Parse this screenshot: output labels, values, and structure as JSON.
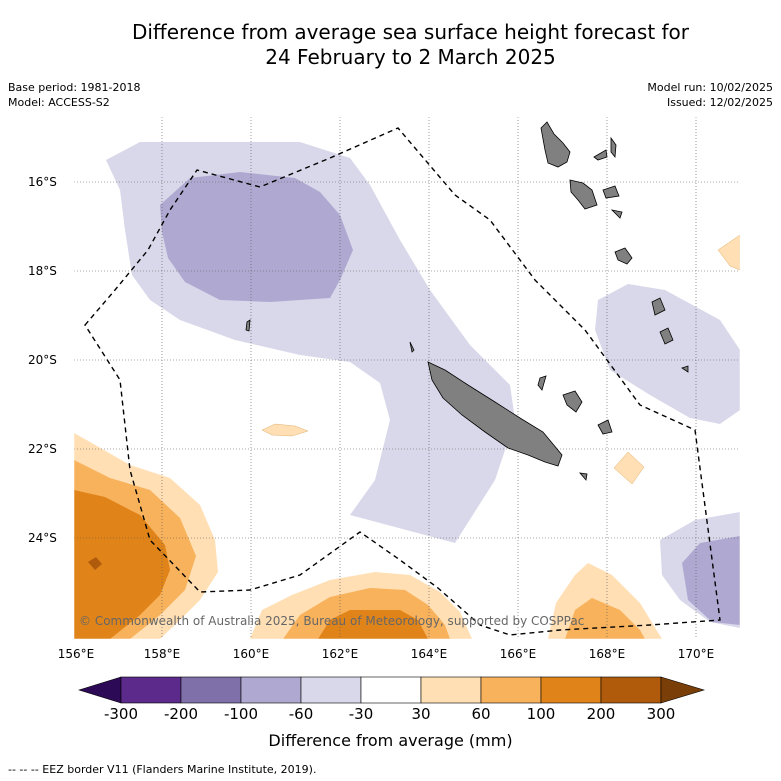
{
  "title": {
    "line1": "Difference from average sea surface height forecast for",
    "line2": "24 February to 2 March 2025"
  },
  "meta": {
    "base_period": "Base period: 1981-2018",
    "model": "Model: ACCESS-S2",
    "model_run": "Model run: 10/02/2025",
    "issued": "Issued: 12/02/2025"
  },
  "map": {
    "lat_labels": [
      "16°S",
      "18°S",
      "20°S",
      "22°S",
      "24°S"
    ],
    "lon_labels": [
      "156°E",
      "158°E",
      "160°E",
      "162°E",
      "164°E",
      "166°E",
      "168°E",
      "170°E"
    ],
    "copyright": "© Commonwealth of Australia 2025, Bureau of Meteorology, supported by COSPPac",
    "land_color": "#808080",
    "eez_line": "dashed black"
  },
  "colorbar": {
    "labels": [
      "-300",
      "-200",
      "-100",
      "-60",
      "-30",
      "30",
      "60",
      "100",
      "200",
      "300"
    ],
    "colors": [
      "#2d0a55",
      "#5b2a8a",
      "#8070aa",
      "#afa9d1",
      "#d8d8ea",
      "#ffffff",
      "#ffdfb3",
      "#f8b25c",
      "#e0841a",
      "#b05a0c",
      "#7a3e08"
    ],
    "title": "Difference from average (mm)"
  },
  "footer": "--  --  -- EEZ border V11 (Flanders Marine Institute, 2019)."
}
